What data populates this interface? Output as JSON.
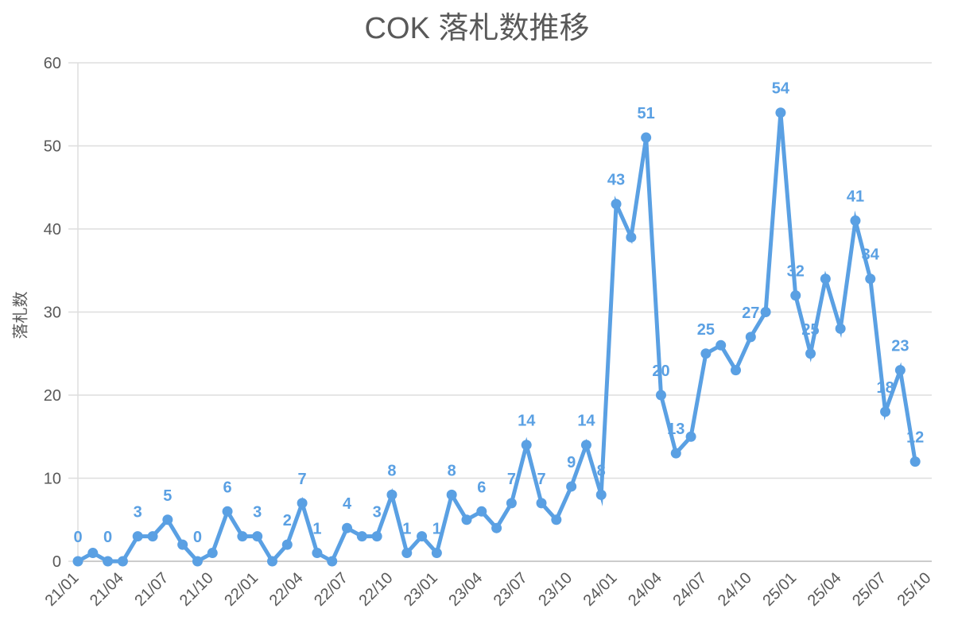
{
  "chart_data": {
    "type": "line",
    "title": "COK 落札数推移",
    "xlabel": "",
    "ylabel": "落札数",
    "ylim": [
      0,
      60
    ],
    "yticks": [
      0,
      10,
      20,
      30,
      40,
      50,
      60
    ],
    "grid": true,
    "legend": null,
    "color": "#5aa0e3",
    "x_tick_labels": [
      "21/01",
      "21/04",
      "21/07",
      "21/10",
      "22/01",
      "22/04",
      "22/07",
      "22/10",
      "23/01",
      "23/04",
      "23/07",
      "23/10",
      "24/01",
      "24/04",
      "24/07",
      "24/10",
      "25/01",
      "25/04",
      "25/07",
      "25/10"
    ],
    "x": [
      "21/01",
      "21/02",
      "21/03",
      "21/04",
      "21/05",
      "21/06",
      "21/07",
      "21/08",
      "21/09",
      "21/10",
      "21/11",
      "21/12",
      "22/01",
      "22/02",
      "22/03",
      "22/04",
      "22/05",
      "22/06",
      "22/07",
      "22/08",
      "22/09",
      "22/10",
      "22/11",
      "22/12",
      "23/01",
      "23/02",
      "23/03",
      "23/04",
      "23/05",
      "23/06",
      "23/07",
      "23/08",
      "23/09",
      "23/10",
      "23/11",
      "23/12",
      "24/01",
      "24/02",
      "24/03",
      "24/04",
      "24/05",
      "24/06",
      "24/07",
      "24/08",
      "24/09",
      "24/10",
      "24/11",
      "24/12",
      "25/01",
      "25/02",
      "25/03",
      "25/04",
      "25/05",
      "25/06",
      "25/07",
      "25/08",
      "25/09"
    ],
    "values": [
      0,
      1,
      0,
      0,
      3,
      3,
      5,
      2,
      0,
      1,
      6,
      3,
      3,
      0,
      2,
      7,
      1,
      0,
      4,
      3,
      3,
      8,
      1,
      3,
      1,
      8,
      5,
      6,
      4,
      7,
      14,
      7,
      5,
      9,
      14,
      8,
      43,
      39,
      51,
      20,
      13,
      15,
      25,
      26,
      23,
      27,
      30,
      54,
      32,
      25,
      34,
      28,
      41,
      34,
      18,
      23,
      12
    ],
    "data_labels": {
      "0": "0",
      "2": "0",
      "4": "3",
      "6": "5",
      "8": "0",
      "10": "6",
      "12": "3",
      "14": "2",
      "15": "7",
      "16": "1",
      "18": "4",
      "20": "3",
      "21": "8",
      "22": "1",
      "24": "1",
      "25": "8",
      "27": "6",
      "29": "7",
      "30": "14",
      "31": "7",
      "33": "9",
      "34": "14",
      "35": "8",
      "36": "43",
      "38": "51",
      "39": "20",
      "40": "13",
      "42": "25",
      "45": "27",
      "47": "54",
      "48": "32",
      "49": "25",
      "52": "41",
      "53": "34",
      "54": "18",
      "55": "23",
      "56": "12"
    }
  }
}
